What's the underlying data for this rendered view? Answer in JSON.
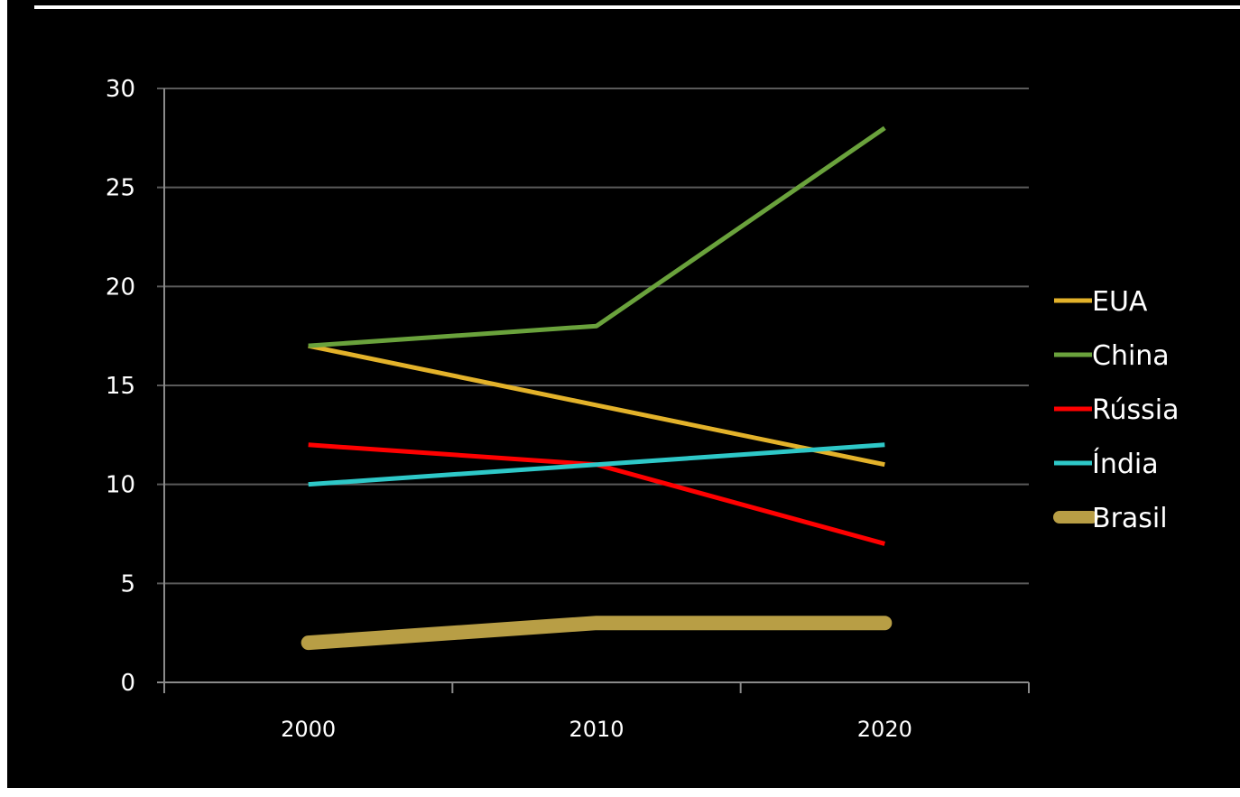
{
  "chart_data": {
    "type": "line",
    "categories": [
      "2000",
      "2010",
      "2020"
    ],
    "ylim": [
      0,
      30
    ],
    "yticks": [
      0,
      5,
      10,
      15,
      20,
      25,
      30
    ],
    "grid": true,
    "legend_position": "right",
    "background_color": "#000000",
    "grid_color": "#5a5a5a",
    "text_color": "#ffffff",
    "series": [
      {
        "name": "EUA",
        "values": [
          17,
          14,
          11
        ],
        "color": "#e3b22a"
      },
      {
        "name": "China",
        "values": [
          17,
          18,
          28
        ],
        "color": "#6aa23c"
      },
      {
        "name": "Rússia",
        "values": [
          12,
          11,
          7
        ],
        "color": "#ff0000"
      },
      {
        "name": "Índia",
        "values": [
          10,
          11,
          12
        ],
        "color": "#2ec8c8"
      },
      {
        "name": "Brasil",
        "values": [
          2,
          3,
          3
        ],
        "color": "#b89e45"
      }
    ]
  }
}
